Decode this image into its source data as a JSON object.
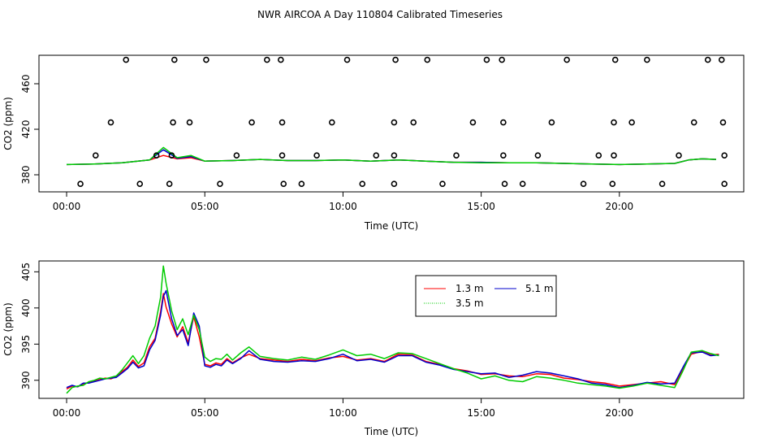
{
  "page_title": "NWR AIRCOA A  Day 110804  Calibrated Timeseries",
  "colors": {
    "series_1_3": "#ff0000",
    "series_3_5": "#00cc00",
    "series_5_1": "#0000cc",
    "axis": "#000000"
  },
  "chart_data": [
    {
      "type": "line",
      "title": "NWR AIRCOA A  Day 110804  Calibrated Timeseries",
      "xlabel": "Time (UTC)",
      "ylabel": "CO2 (ppm)",
      "xlim": [
        -1.0,
        24.5
      ],
      "ylim": [
        365,
        485
      ],
      "x_ticks": [
        0,
        5,
        10,
        15,
        20
      ],
      "x_tick_labels": [
        "00:00",
        "05:00",
        "10:00",
        "15:00",
        "20:00"
      ],
      "y_ticks": [
        380,
        420,
        460
      ],
      "y_tick_labels": [
        "380",
        "420",
        "460"
      ],
      "legend": "none",
      "calibration_points": {
        "marker": "open-circle",
        "levels": [
          372,
          397,
          426,
          481
        ],
        "x": [
          [
            0.5,
            2.65,
            3.72,
            5.55,
            7.85,
            8.5,
            10.7,
            11.85,
            13.6,
            15.85,
            16.5,
            18.7,
            19.75,
            21.55,
            23.8
          ],
          [
            1.05,
            3.25,
            3.8,
            6.15,
            7.8,
            9.05,
            11.2,
            11.85,
            14.1,
            15.8,
            17.05,
            19.25,
            19.8,
            22.15,
            23.8
          ],
          [
            1.6,
            3.85,
            4.45,
            6.7,
            7.8,
            9.6,
            11.85,
            12.55,
            14.7,
            15.8,
            17.55,
            19.8,
            20.45,
            22.7,
            23.75
          ],
          [
            2.15,
            3.9,
            5.05,
            7.25,
            7.75,
            10.15,
            11.9,
            13.05,
            15.2,
            15.75,
            18.1,
            19.85,
            21.0,
            23.2,
            23.7
          ]
        ]
      },
      "series": [
        {
          "name": "1.3 m",
          "color": "#ff0000",
          "x": [
            0,
            1,
            2,
            3,
            3.5,
            4,
            4.5,
            5,
            6,
            7,
            8,
            9,
            10,
            11,
            12,
            13,
            14,
            15,
            16,
            17,
            18,
            19,
            20,
            21,
            22,
            22.5,
            23,
            23.5
          ],
          "values": [
            389,
            389.5,
            390.5,
            393,
            397,
            394,
            395,
            392,
            392.5,
            393.5,
            392.5,
            392.5,
            393,
            392,
            393,
            392,
            391,
            391,
            390.5,
            390.5,
            390,
            389.5,
            389,
            389.5,
            390,
            393,
            394,
            393.5
          ]
        },
        {
          "name": "3.5 m",
          "color": "#00cc00",
          "x": [
            0,
            1,
            2,
            3,
            3.5,
            4,
            4.5,
            5,
            6,
            7,
            8,
            9,
            10,
            11,
            12,
            13,
            14,
            15,
            16,
            17,
            18,
            19,
            20,
            21,
            22,
            22.5,
            23,
            23.5
          ],
          "values": [
            389,
            389.5,
            390.5,
            393,
            404,
            395,
            397,
            392,
            392.5,
            393.5,
            392.5,
            392.5,
            393,
            392,
            393,
            392,
            391,
            390.5,
            390.5,
            390.5,
            390,
            389.5,
            389,
            389.5,
            390,
            393,
            394,
            393.5
          ]
        },
        {
          "name": "5.1 m",
          "color": "#0000cc",
          "x": [
            0,
            1,
            2,
            3,
            3.5,
            4,
            4.5,
            5,
            6,
            7,
            8,
            9,
            10,
            11,
            12,
            13,
            14,
            15,
            16,
            17,
            18,
            19,
            20,
            21,
            22,
            22.5,
            23,
            23.5
          ],
          "values": [
            389,
            389.5,
            390.5,
            393,
            402,
            394.5,
            396,
            392,
            392.5,
            393.5,
            392.5,
            392.5,
            393,
            392,
            393,
            392,
            391,
            391,
            390.5,
            390.5,
            390,
            389.5,
            389,
            389.5,
            390,
            393,
            394,
            393.5
          ]
        }
      ]
    },
    {
      "type": "line",
      "title": "",
      "xlabel": "Time (UTC)",
      "ylabel": "CO2 (ppm)",
      "xlim": [
        -1.0,
        24.5
      ],
      "ylim": [
        387.5,
        406.5
      ],
      "x_ticks": [
        0,
        5,
        10,
        15,
        20
      ],
      "x_tick_labels": [
        "00:00",
        "05:00",
        "10:00",
        "15:00",
        "20:00"
      ],
      "y_ticks": [
        390,
        395,
        400,
        405
      ],
      "y_tick_labels": [
        "390",
        "395",
        "400",
        "405"
      ],
      "legend": "top-center",
      "legend_entries": [
        "1.3 m",
        "3.5 m",
        "5.1 m"
      ],
      "series": [
        {
          "name": "1.3 m",
          "color": "#ff0000",
          "x": [
            0,
            0.2,
            0.4,
            0.6,
            0.8,
            1.0,
            1.2,
            1.4,
            1.6,
            1.8,
            2.0,
            2.2,
            2.4,
            2.6,
            2.8,
            3.0,
            3.2,
            3.4,
            3.5,
            3.6,
            3.8,
            4.0,
            4.2,
            4.4,
            4.6,
            4.8,
            5.0,
            5.2,
            5.4,
            5.6,
            5.8,
            6.0,
            6.3,
            6.6,
            7.0,
            7.5,
            8.0,
            8.5,
            9.0,
            9.5,
            10.0,
            10.5,
            11.0,
            11.5,
            12.0,
            12.5,
            13.0,
            13.5,
            14.0,
            14.5,
            15.0,
            15.5,
            16.0,
            16.5,
            17.0,
            17.5,
            18.0,
            18.5,
            19.0,
            19.5,
            20.0,
            20.5,
            21.0,
            21.5,
            22.0,
            22.3,
            22.6,
            23.0,
            23.3,
            23.6
          ],
          "values": [
            388.8,
            389.2,
            389.1,
            389.5,
            389.7,
            389.9,
            390.1,
            390.3,
            390.2,
            390.5,
            391.2,
            391.8,
            392.8,
            391.9,
            392.4,
            394.6,
            395.8,
            399.5,
            402.0,
            400.1,
            397.8,
            396.0,
            397.4,
            395.2,
            398.8,
            396.0,
            392.2,
            392.0,
            392.4,
            392.2,
            393.0,
            392.4,
            393.1,
            393.6,
            393.0,
            392.8,
            392.6,
            392.9,
            392.7,
            393.1,
            393.3,
            392.8,
            393.0,
            392.6,
            393.6,
            393.5,
            392.6,
            392.2,
            391.6,
            391.3,
            390.8,
            390.9,
            390.6,
            390.5,
            390.9,
            390.8,
            390.3,
            390.1,
            389.8,
            389.6,
            389.2,
            389.4,
            389.6,
            389.8,
            389.4,
            391.5,
            393.6,
            394.0,
            393.5,
            393.6
          ]
        },
        {
          "name": "3.5 m",
          "color": "#00cc00",
          "x": [
            0,
            0.2,
            0.4,
            0.6,
            0.8,
            1.0,
            1.2,
            1.4,
            1.6,
            1.8,
            2.0,
            2.2,
            2.4,
            2.6,
            2.8,
            3.0,
            3.2,
            3.4,
            3.5,
            3.6,
            3.8,
            4.0,
            4.2,
            4.4,
            4.6,
            4.8,
            5.0,
            5.2,
            5.4,
            5.6,
            5.8,
            6.0,
            6.3,
            6.6,
            7.0,
            7.5,
            8.0,
            8.5,
            9.0,
            9.5,
            10.0,
            10.5,
            11.0,
            11.5,
            12.0,
            12.5,
            13.0,
            13.5,
            14.0,
            14.5,
            15.0,
            15.5,
            16.0,
            16.5,
            17.0,
            17.5,
            18.0,
            18.5,
            19.0,
            19.5,
            20.0,
            20.5,
            21.0,
            21.5,
            22.0,
            22.3,
            22.6,
            23.0,
            23.3,
            23.6
          ],
          "values": [
            388.2,
            389.0,
            389.2,
            389.3,
            389.8,
            390.0,
            390.3,
            390.2,
            390.4,
            390.6,
            391.4,
            392.4,
            393.4,
            392.3,
            393.4,
            395.8,
            397.5,
            401.5,
            405.8,
            403.4,
            399.6,
            397.0,
            398.5,
            396.3,
            399.0,
            397.0,
            393.2,
            392.6,
            393.0,
            392.9,
            393.6,
            392.8,
            393.8,
            394.6,
            393.3,
            393.0,
            392.8,
            393.2,
            392.9,
            393.5,
            394.2,
            393.4,
            393.6,
            393.0,
            393.8,
            393.7,
            393.0,
            392.3,
            391.6,
            391.0,
            390.2,
            390.6,
            390.0,
            389.8,
            390.5,
            390.3,
            390.0,
            389.6,
            389.4,
            389.2,
            388.9,
            389.2,
            389.6,
            389.3,
            389.0,
            391.3,
            393.9,
            394.1,
            393.7,
            393.4
          ]
        },
        {
          "name": "5.1 m",
          "color": "#0000cc",
          "x": [
            0,
            0.2,
            0.4,
            0.6,
            0.8,
            1.0,
            1.2,
            1.4,
            1.6,
            1.8,
            2.0,
            2.2,
            2.4,
            2.6,
            2.8,
            3.0,
            3.2,
            3.4,
            3.5,
            3.6,
            3.8,
            4.0,
            4.2,
            4.4,
            4.6,
            4.8,
            5.0,
            5.2,
            5.4,
            5.6,
            5.8,
            6.0,
            6.3,
            6.6,
            7.0,
            7.5,
            8.0,
            8.5,
            9.0,
            9.5,
            10.0,
            10.5,
            11.0,
            11.5,
            12.0,
            12.5,
            13.0,
            13.5,
            14.0,
            14.5,
            15.0,
            15.5,
            16.0,
            16.5,
            17.0,
            17.5,
            18.0,
            18.5,
            19.0,
            19.5,
            20.0,
            20.5,
            21.0,
            21.5,
            22.0,
            22.3,
            22.6,
            23.0,
            23.3,
            23.6
          ],
          "values": [
            389.0,
            389.3,
            389.1,
            389.6,
            389.6,
            389.8,
            390.0,
            390.2,
            390.3,
            390.4,
            391.0,
            391.6,
            392.5,
            391.7,
            392.0,
            394.2,
            395.5,
            399.0,
            401.6,
            402.4,
            398.5,
            396.2,
            397.0,
            394.8,
            399.3,
            397.5,
            392.0,
            391.8,
            392.2,
            392.0,
            392.8,
            392.3,
            393.0,
            394.1,
            392.9,
            392.6,
            392.5,
            392.7,
            392.6,
            393.0,
            393.6,
            392.7,
            392.9,
            392.5,
            393.4,
            393.4,
            392.5,
            392.1,
            391.5,
            391.2,
            390.9,
            391.0,
            390.4,
            390.7,
            391.2,
            391.0,
            390.6,
            390.2,
            389.6,
            389.4,
            389.0,
            389.3,
            389.7,
            389.5,
            389.6,
            391.8,
            393.8,
            393.9,
            393.4,
            393.5
          ]
        }
      ]
    }
  ]
}
